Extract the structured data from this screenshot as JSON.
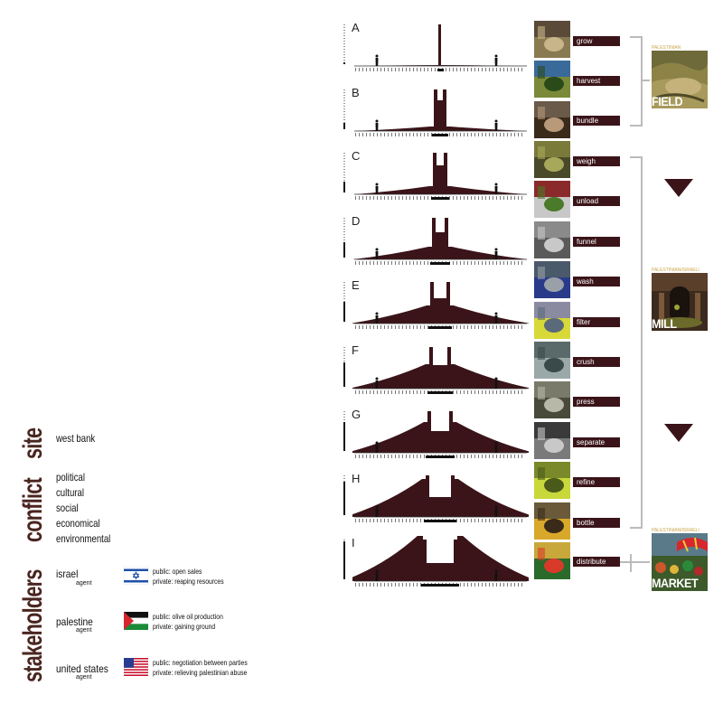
{
  "headings": {
    "site": "site",
    "conflict": "conflict",
    "stakeholders": "stakeholders"
  },
  "site": {
    "value": "west bank"
  },
  "conflict": {
    "items": [
      "political",
      "cultural",
      "social",
      "economical",
      "environmental"
    ]
  },
  "stakeholders": [
    {
      "name": "israel",
      "role": "agent",
      "flag": "israel-flag-icon",
      "public": "public: open sales",
      "private": "private: reaping resources"
    },
    {
      "name": "palestine",
      "role": "agent",
      "flag": "palestine-flag-icon",
      "public": "public: olive oil production",
      "private": "private: gaining ground"
    },
    {
      "name": "united states",
      "role": "agent",
      "flag": "usa-flag-icon",
      "public": "public: negotiation between parties",
      "private": "private: relieving palestinian abuse"
    }
  ],
  "stages": [
    "A",
    "B",
    "C",
    "D",
    "E",
    "F",
    "G",
    "H",
    "I"
  ],
  "processes": [
    "grow",
    "harvest",
    "bundle",
    "weigh",
    "unload",
    "funnel",
    "wash",
    "filter",
    "crush",
    "press",
    "separate",
    "refine",
    "bottle",
    "distribute"
  ],
  "locations": [
    {
      "caption": "PALESTINIAN",
      "label": "FIELD"
    },
    {
      "caption": "PALESTINIAN/ISRAELI",
      "label": "MILL"
    },
    {
      "caption": "PALESTINIAN/ISRAELI",
      "label": "MARKET"
    }
  ],
  "colors": {
    "primary": "#3a1419",
    "heading": "#4a2620",
    "bracket": "#bbbbbb"
  }
}
